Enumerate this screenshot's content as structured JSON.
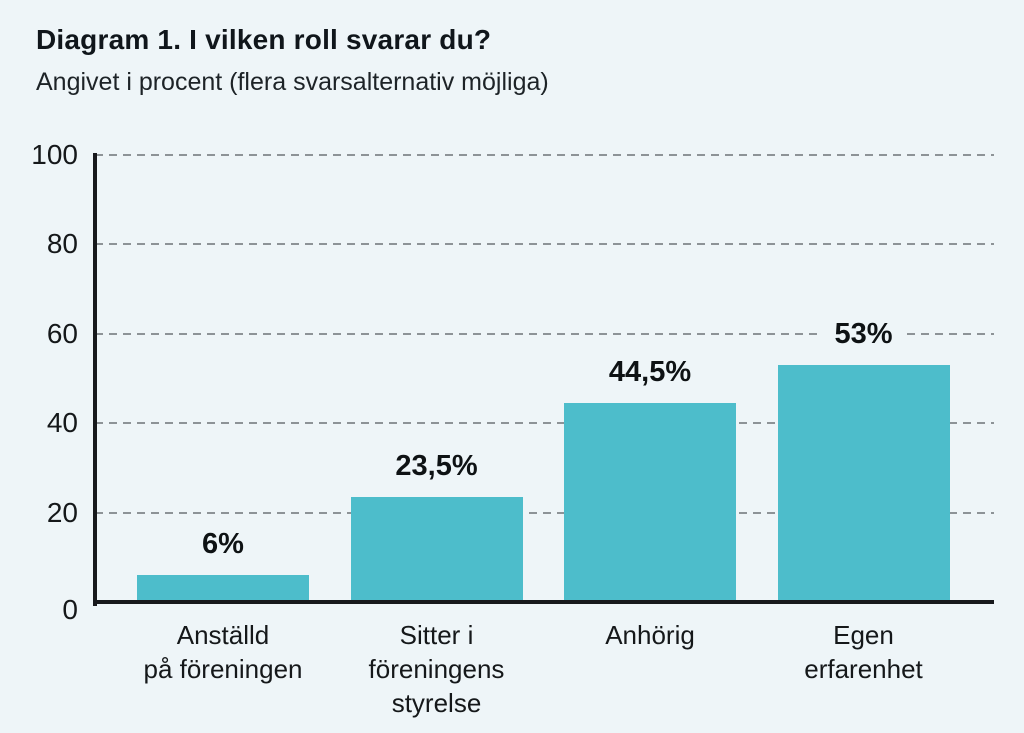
{
  "page": {
    "background_color": "#eef5f8"
  },
  "header": {
    "title": "Diagram 1. I vilken roll svarar du?",
    "subtitle": "Angivet i procent (flera svarsalternativ möjliga)"
  },
  "chart_data": {
    "type": "bar",
    "title": "Diagram 1. I vilken roll svarar du?",
    "subtitle": "Angivet i procent (flera svarsalternativ möjliga)",
    "categories": [
      "Anställd\npå föreningen",
      "Sitter i\nföreningens\nstyrelse",
      "Anhörig",
      "Egen\nerfarenhet"
    ],
    "values": [
      6,
      23.5,
      44.5,
      53
    ],
    "value_labels": [
      "6%",
      "23,5%",
      "44,5%",
      "53%"
    ],
    "xlabel": "",
    "ylabel": "",
    "ylim": [
      0,
      100
    ],
    "yticks": [
      0,
      20,
      40,
      60,
      80,
      100
    ],
    "grid": "dashed horizontal",
    "legend": "none",
    "bar_color": "#4dbdcb",
    "axis_color": "#17191c",
    "gridline_color": "#8d9397"
  }
}
